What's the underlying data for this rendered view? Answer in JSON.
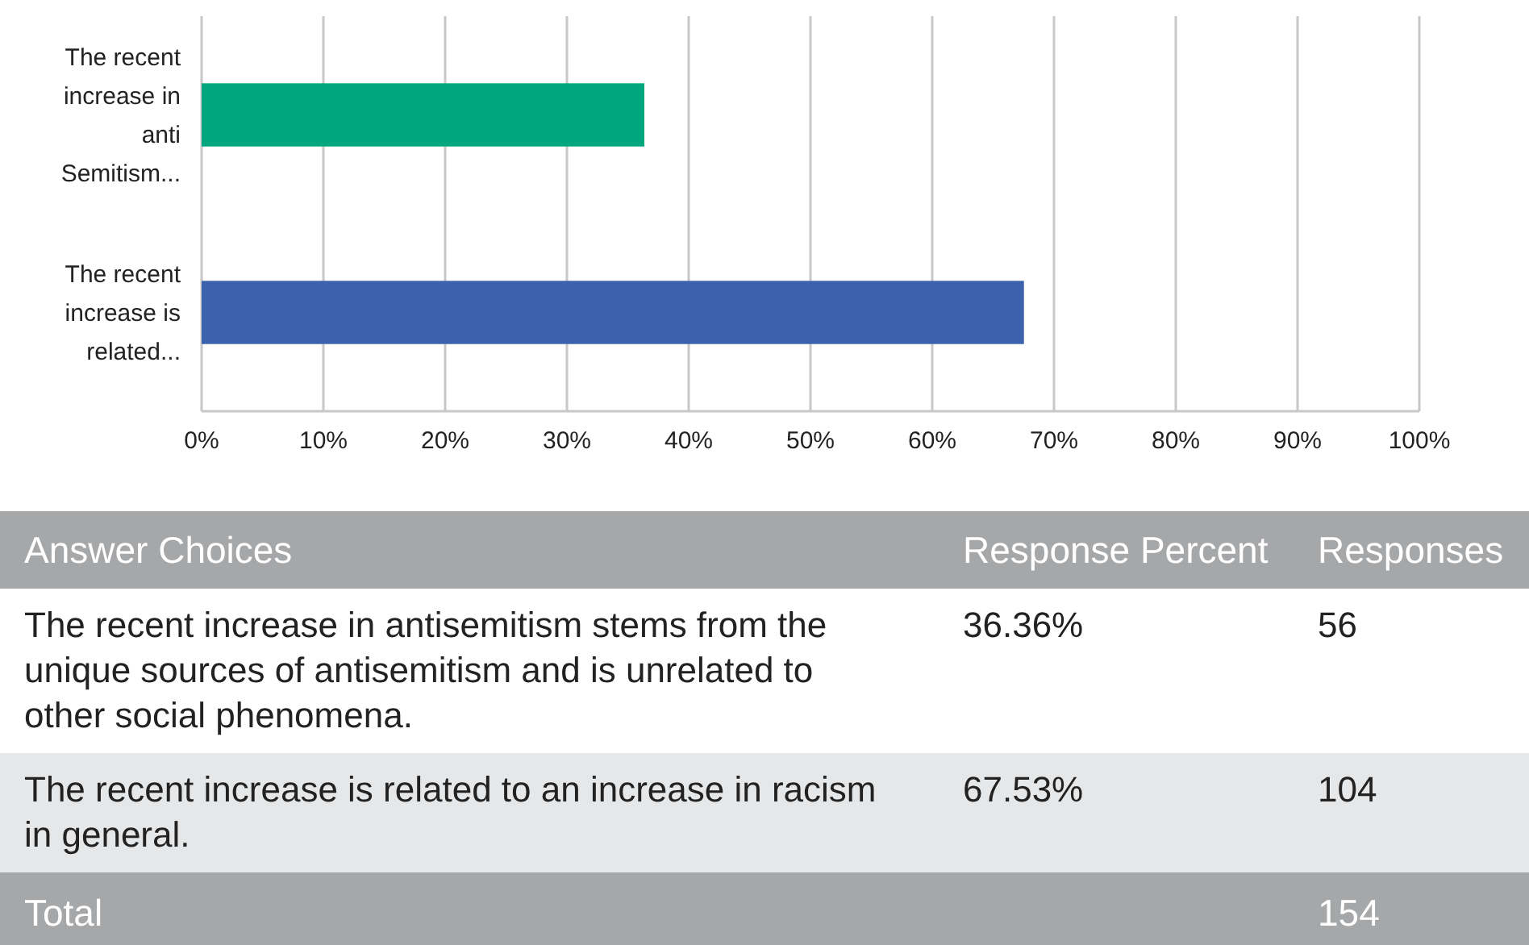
{
  "chart_data": {
    "type": "bar",
    "orientation": "horizontal",
    "categories": [
      "The recent increase in anti Semitism...",
      "The recent increase is related..."
    ],
    "values": [
      36.36,
      67.53
    ],
    "colors": [
      "#00a77e",
      "#3c62ad"
    ],
    "xlim": [
      0,
      100
    ],
    "xticks": [
      {
        "value": 0,
        "label": "0%"
      },
      {
        "value": 10,
        "label": "10%"
      },
      {
        "value": 20,
        "label": "20%"
      },
      {
        "value": 30,
        "label": "30%"
      },
      {
        "value": 40,
        "label": "40%"
      },
      {
        "value": 50,
        "label": "50%"
      },
      {
        "value": 60,
        "label": "60%"
      },
      {
        "value": 70,
        "label": "70%"
      },
      {
        "value": 80,
        "label": "80%"
      },
      {
        "value": 90,
        "label": "90%"
      },
      {
        "value": 100,
        "label": "100%"
      }
    ],
    "grid": "x",
    "annotations": [
      "Answer Choices",
      "Response Percent",
      "Responses",
      "The recent increase in antisemitism stems from the unique sources of antisemitism and is unrelated to other social phenomena.",
      "36.36%",
      "56",
      "The recent increase is related to an increase in racism in general.",
      "67.53%",
      "104",
      "Total",
      "154"
    ]
  }
}
